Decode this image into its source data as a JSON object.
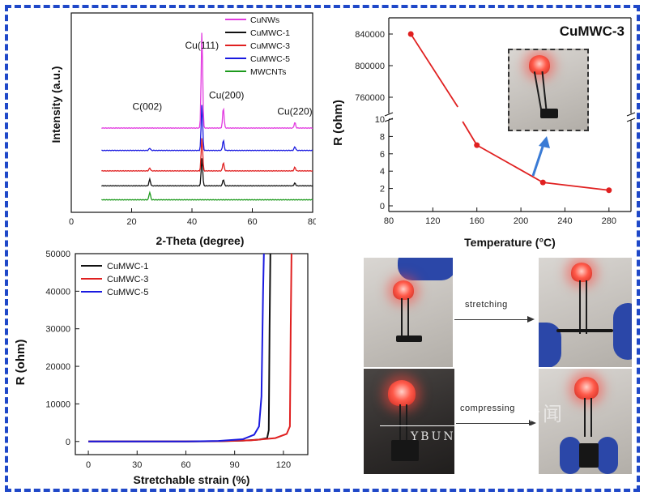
{
  "chart_data": [
    {
      "type": "line",
      "xlabel": "2-Theta (degree)",
      "ylabel": "Intensity (a.u.)",
      "xlim": [
        0,
        80
      ],
      "xticks": [
        "0",
        "20",
        "40",
        "60",
        "80"
      ],
      "peak_labels": [
        "C(002)",
        "Cu(111)",
        "Cu(200)",
        "Cu(220)"
      ],
      "peak_positions": [
        26,
        43.3,
        50.4,
        74.1
      ],
      "series": [
        {
          "name": "CuNWs",
          "color": "#e23ce0",
          "baseline": 4,
          "peaks": [
            [
              43.3,
              5.2
            ],
            [
              50.4,
              1.1
            ],
            [
              74.1,
              0.3
            ]
          ]
        },
        {
          "name": "CuMWC-1",
          "color": "#111111",
          "baseline": 0.9,
          "peaks": [
            [
              26,
              0.35
            ],
            [
              43.3,
              1.5
            ],
            [
              50.4,
              0.35
            ],
            [
              74.1,
              0.15
            ]
          ]
        },
        {
          "name": "CuMWC-3",
          "color": "#e02020",
          "baseline": 1.7,
          "peaks": [
            [
              26,
              0.15
            ],
            [
              43.3,
              1.8
            ],
            [
              50.4,
              0.45
            ],
            [
              74.1,
              0.2
            ]
          ]
        },
        {
          "name": "CuMWC-5",
          "color": "#1a1ae0",
          "baseline": 2.8,
          "peaks": [
            [
              26,
              0.12
            ],
            [
              43.3,
              2.5
            ],
            [
              50.4,
              0.55
            ],
            [
              74.1,
              0.2
            ]
          ]
        },
        {
          "name": "MWCNTs",
          "color": "#1d9a1d",
          "baseline": 0.15,
          "peaks": [
            [
              26,
              0.4
            ]
          ]
        }
      ],
      "legend_position": "top-right",
      "grid": false
    },
    {
      "type": "line",
      "title": "CuMWC-3",
      "xlabel": "Temperature (°C)",
      "ylabel": "R (ohm)",
      "xlim": [
        80,
        300
      ],
      "xticks": [
        "80",
        "120",
        "160",
        "200",
        "240",
        "280"
      ],
      "yticks_lower": [
        "0",
        "2",
        "4",
        "6",
        "8",
        "10"
      ],
      "yticks_upper": [
        "760000",
        "800000",
        "840000"
      ],
      "axis_break": true,
      "series": [
        {
          "color": "#e02020",
          "x": [
            100,
            160,
            220,
            280
          ],
          "y": [
            840000,
            7,
            2.7,
            1.8
          ]
        }
      ],
      "grid": false
    },
    {
      "type": "line",
      "xlabel": "Stretchable strain (%)",
      "ylabel": "R (ohm)",
      "xlim": [
        -8,
        135
      ],
      "ylim": [
        -3500,
        50000
      ],
      "xticks": [
        "0",
        "30",
        "60",
        "90",
        "120"
      ],
      "yticks": [
        "0",
        "10000",
        "20000",
        "30000",
        "40000",
        "50000"
      ],
      "series": [
        {
          "name": "CuMWC-1",
          "color": "#111111",
          "x": [
            0,
            60,
            80,
            95,
            105,
            110,
            111,
            111.5,
            112
          ],
          "y": [
            0,
            0,
            50,
            200,
            500,
            900,
            3000,
            30000,
            50000
          ]
        },
        {
          "name": "CuMWC-3",
          "color": "#e02020",
          "x": [
            0,
            60,
            80,
            100,
            115,
            122,
            124,
            124.5,
            125
          ],
          "y": [
            0,
            0,
            80,
            300,
            900,
            2000,
            4000,
            30000,
            50000
          ]
        },
        {
          "name": "CuMWC-5",
          "color": "#1a1ae0",
          "x": [
            0,
            60,
            80,
            95,
            102,
            105,
            106.5,
            107.5,
            108
          ],
          "y": [
            0,
            0,
            150,
            600,
            1800,
            4000,
            12000,
            40000,
            50000
          ]
        }
      ],
      "legend_position": "top-left",
      "grid": false
    }
  ],
  "photos": {
    "stretching_label": "stretching",
    "compressing_label": "compressing"
  },
  "watermark": {
    "text": "YBUN",
    "chars": "新闻"
  }
}
